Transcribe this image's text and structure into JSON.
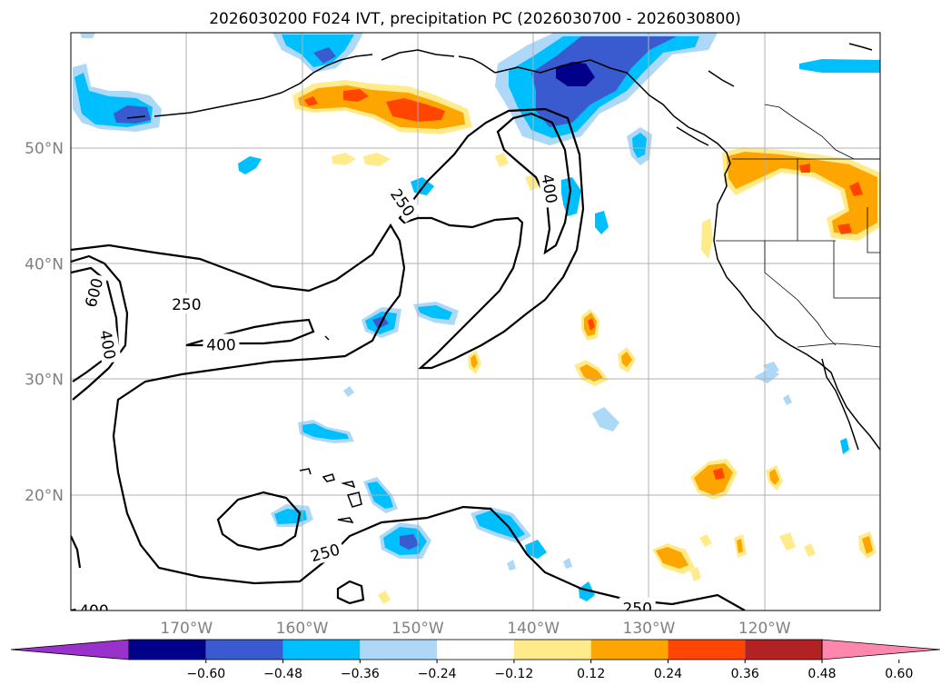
{
  "chart_data": {
    "type": "filled-contour-map",
    "title": "2026030200 F024 IVT, precipitation PC (2026030700 - 2026030800)",
    "map_extent": {
      "lon_min": -180,
      "lon_max": -110,
      "lat_min": 10,
      "lat_max": 60
    },
    "lon_ticks": [
      {
        "lon": -170,
        "label": "170°W"
      },
      {
        "lon": -160,
        "label": "160°W"
      },
      {
        "lon": -150,
        "label": "150°W"
      },
      {
        "lon": -140,
        "label": "140°W"
      },
      {
        "lon": -130,
        "label": "130°W"
      },
      {
        "lon": -120,
        "label": "120°W"
      }
    ],
    "lat_ticks": [
      {
        "lat": 50,
        "label": "50°N"
      },
      {
        "lat": 40,
        "label": "40°N"
      },
      {
        "lat": 30,
        "label": "30°N"
      },
      {
        "lat": 20,
        "label": "20°N"
      }
    ],
    "grid": true,
    "colorbar": {
      "orientation": "horizontal",
      "extend": "both",
      "levels": [
        -0.6,
        -0.48,
        -0.36,
        -0.24,
        -0.12,
        0.12,
        0.24,
        0.36,
        0.48,
        0.6
      ],
      "tick_labels": [
        "−0.60",
        "−0.48",
        "−0.36",
        "−0.24",
        "−0.12",
        "0.12",
        "0.24",
        "0.36",
        "0.48",
        "0.60"
      ],
      "colors": [
        "#9932cc",
        "#00008b",
        "#3a5bd0",
        "#00bfff",
        "#add8f8",
        "#ffffff",
        "#ffeb8a",
        "#ffa500",
        "#ff4500",
        "#b22222",
        "#ff87ad"
      ]
    },
    "ivt_contour_labels": [
      {
        "text": "250",
        "lon": -170,
        "lat": 36.5,
        "rotate": 0
      },
      {
        "text": "400",
        "lon": -167,
        "lat": 33,
        "rotate": 0
      },
      {
        "text": "600",
        "lon": -178,
        "lat": 37.5,
        "rotate": -75
      },
      {
        "text": "400",
        "lon": -176.8,
        "lat": 33,
        "rotate": 80
      },
      {
        "text": "250",
        "lon": -151.3,
        "lat": 45.3,
        "rotate": 55
      },
      {
        "text": "400",
        "lon": -138.6,
        "lat": 46.5,
        "rotate": 80
      },
      {
        "text": "250",
        "lon": -158,
        "lat": 15,
        "rotate": -15
      },
      {
        "text": "400",
        "lon": -178,
        "lat": 10,
        "rotate": 0
      },
      {
        "text": "250",
        "lon": -131,
        "lat": 10.2,
        "rotate": 0
      }
    ],
    "precip_anomaly_regions": [
      {
        "level": -0.24,
        "center": [
          -135.5,
          56
        ],
        "note": "Gulf of Alaska negative maximum"
      },
      {
        "level": -0.48,
        "center": [
          -134.8,
          56.5
        ]
      },
      {
        "level": -0.24,
        "center": [
          -174.5,
          53.5
        ]
      },
      {
        "level": 0.24,
        "center": [
          -150,
          53.3
        ],
        "note": "positive band south of Alaska"
      },
      {
        "level": 0.36,
        "center": [
          -150,
          53.2
        ]
      },
      {
        "level": 0.24,
        "center": [
          -117,
          48.5
        ],
        "note": "Pacific Northwest positive"
      },
      {
        "level": 0.24,
        "center": [
          -124,
          22.4
        ]
      },
      {
        "level": -0.24,
        "center": [
          -150,
          16.2
        ]
      }
    ]
  }
}
